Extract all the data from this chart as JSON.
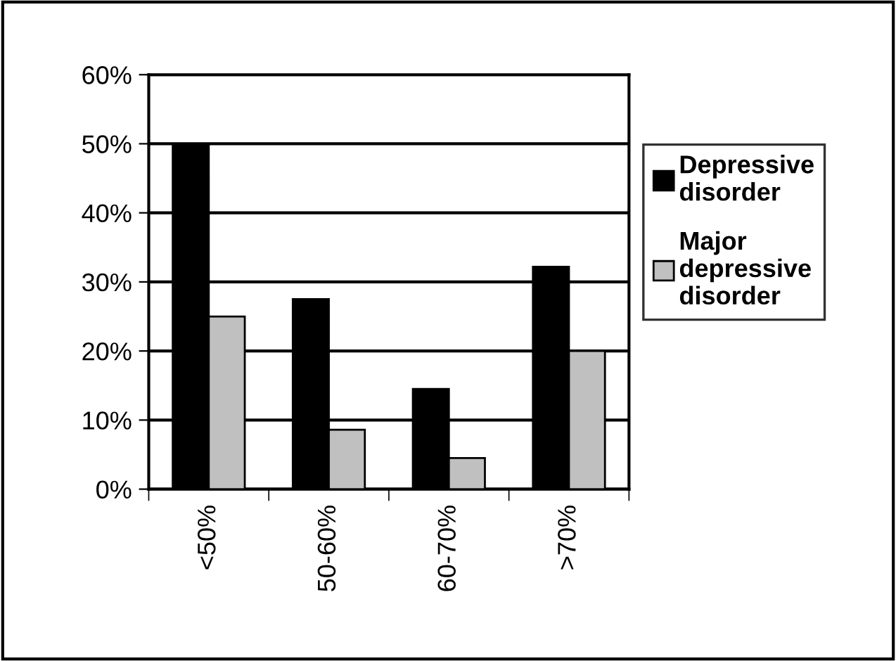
{
  "chart_data": {
    "type": "bar",
    "categories": [
      "<50%",
      "50-60%",
      "60-70%",
      ">70%"
    ],
    "series": [
      {
        "name": "Depressive disorder",
        "color": "#000000",
        "values": [
          50,
          27.5,
          14.5,
          32.2
        ]
      },
      {
        "name": "Major depressive disorder",
        "color": "#c0c0c0",
        "values": [
          25,
          8.6,
          4.5,
          20
        ]
      }
    ],
    "ylim": [
      0,
      60
    ],
    "yticks": [
      {
        "value": 0,
        "label": "0%"
      },
      {
        "value": 10,
        "label": "10%"
      },
      {
        "value": 20,
        "label": "20%"
      },
      {
        "value": 30,
        "label": "30%"
      },
      {
        "value": 40,
        "label": "40%"
      },
      {
        "value": 50,
        "label": "50%"
      },
      {
        "value": 60,
        "label": "60%"
      }
    ],
    "grid": "y",
    "legend": "right"
  }
}
